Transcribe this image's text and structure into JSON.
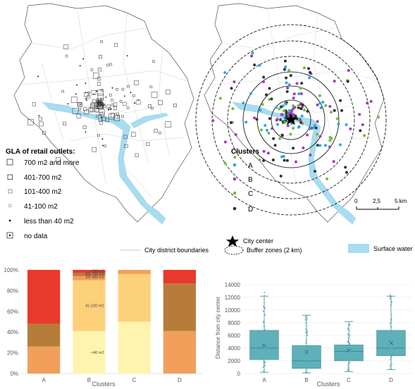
{
  "legend_gla": {
    "title": "GLA of retail outlets:",
    "items": [
      {
        "label": "700 m2 and more",
        "symbol": "square-large"
      },
      {
        "label": "401-700 m2",
        "symbol": "square-medium"
      },
      {
        "label": "101-400 m2",
        "symbol": "square-small"
      },
      {
        "label": "41-100 m2",
        "symbol": "square-tiny"
      },
      {
        "label": "less than 40 m2",
        "symbol": "dot"
      },
      {
        "label": "no data",
        "symbol": "square-dot"
      }
    ]
  },
  "legend_clusters": {
    "title": "Clusters",
    "items": [
      {
        "label": "A",
        "color": "#2aa8e0"
      },
      {
        "label": "B",
        "color": "#a23bb5"
      },
      {
        "label": "C",
        "color": "#6cbf3c"
      },
      {
        "label": "D",
        "color": "#333333"
      }
    ]
  },
  "map_legend": {
    "district_boundaries": "City district boundaries",
    "city_center": "City center",
    "buffer_zones": "Buffer zones (2 km)",
    "surface_water": "Surface water",
    "scale_labels": [
      "0",
      "2,5",
      "5 km"
    ]
  },
  "colors": {
    "water": "#a8dcf0",
    "boundary": "#c8c8c8",
    "size_lt40": "#fff3b0",
    "size_41_100": "#fdd07a",
    "size_101_400": "#f0a05a",
    "size_401_700": "#b87c3a",
    "size_700plus": "#e8392c",
    "box_fill": "#5fb0b8",
    "box_stroke": "#3a8a92"
  },
  "chart_data": [
    {
      "type": "bar",
      "stacked": true,
      "xlabel": "Clusters",
      "categories": [
        "A",
        "B",
        "C",
        "D"
      ],
      "ylim": [
        0,
        100
      ],
      "yticks": [
        "0%",
        "20%",
        "40%",
        "60%",
        "80%",
        "100%"
      ],
      "series": [
        {
          "name": "<40 m2",
          "color": "#fff3b0",
          "values": [
            0,
            41,
            50,
            0
          ]
        },
        {
          "name": "41-100 m2",
          "color": "#fdd07a",
          "values": [
            0,
            49,
            46,
            0
          ]
        },
        {
          "name": "101-400 m2",
          "color": "#f0a05a",
          "values": [
            26,
            4,
            4,
            41
          ]
        },
        {
          "name": "401-700 m2",
          "color": "#b87c3a",
          "values": [
            22,
            3,
            0,
            46
          ]
        },
        {
          "name": ">700 m2",
          "color": "#e8392c",
          "values": [
            52,
            3,
            0,
            13
          ]
        }
      ],
      "labels_b": [
        "<40 m2",
        "41-100 m2",
        "101-400 m2",
        "401-700 m2",
        ">700 m2"
      ]
    },
    {
      "type": "box",
      "ylabel": "Distance from city center",
      "xlabel": "Clusters",
      "categories": [
        "A",
        "B",
        "C",
        "D"
      ],
      "ylim": [
        0,
        14000
      ],
      "yticks": [
        "0",
        "2000",
        "4000",
        "6000",
        "8000",
        "10000",
        "12000",
        "14000"
      ],
      "boxes": [
        {
          "min": 200,
          "q1": 2200,
          "median": 4000,
          "q3": 6800,
          "max": 12200,
          "mean": 4400
        },
        {
          "min": 100,
          "q1": 800,
          "median": 2000,
          "q3": 4400,
          "max": 9200,
          "mean": 3400
        },
        {
          "min": 300,
          "q1": 2000,
          "median": 3500,
          "q3": 4500,
          "max": 8200,
          "mean": 3600
        },
        {
          "min": 600,
          "q1": 2800,
          "median": 4000,
          "q3": 6800,
          "max": 12200,
          "mean": 4800
        }
      ]
    }
  ]
}
